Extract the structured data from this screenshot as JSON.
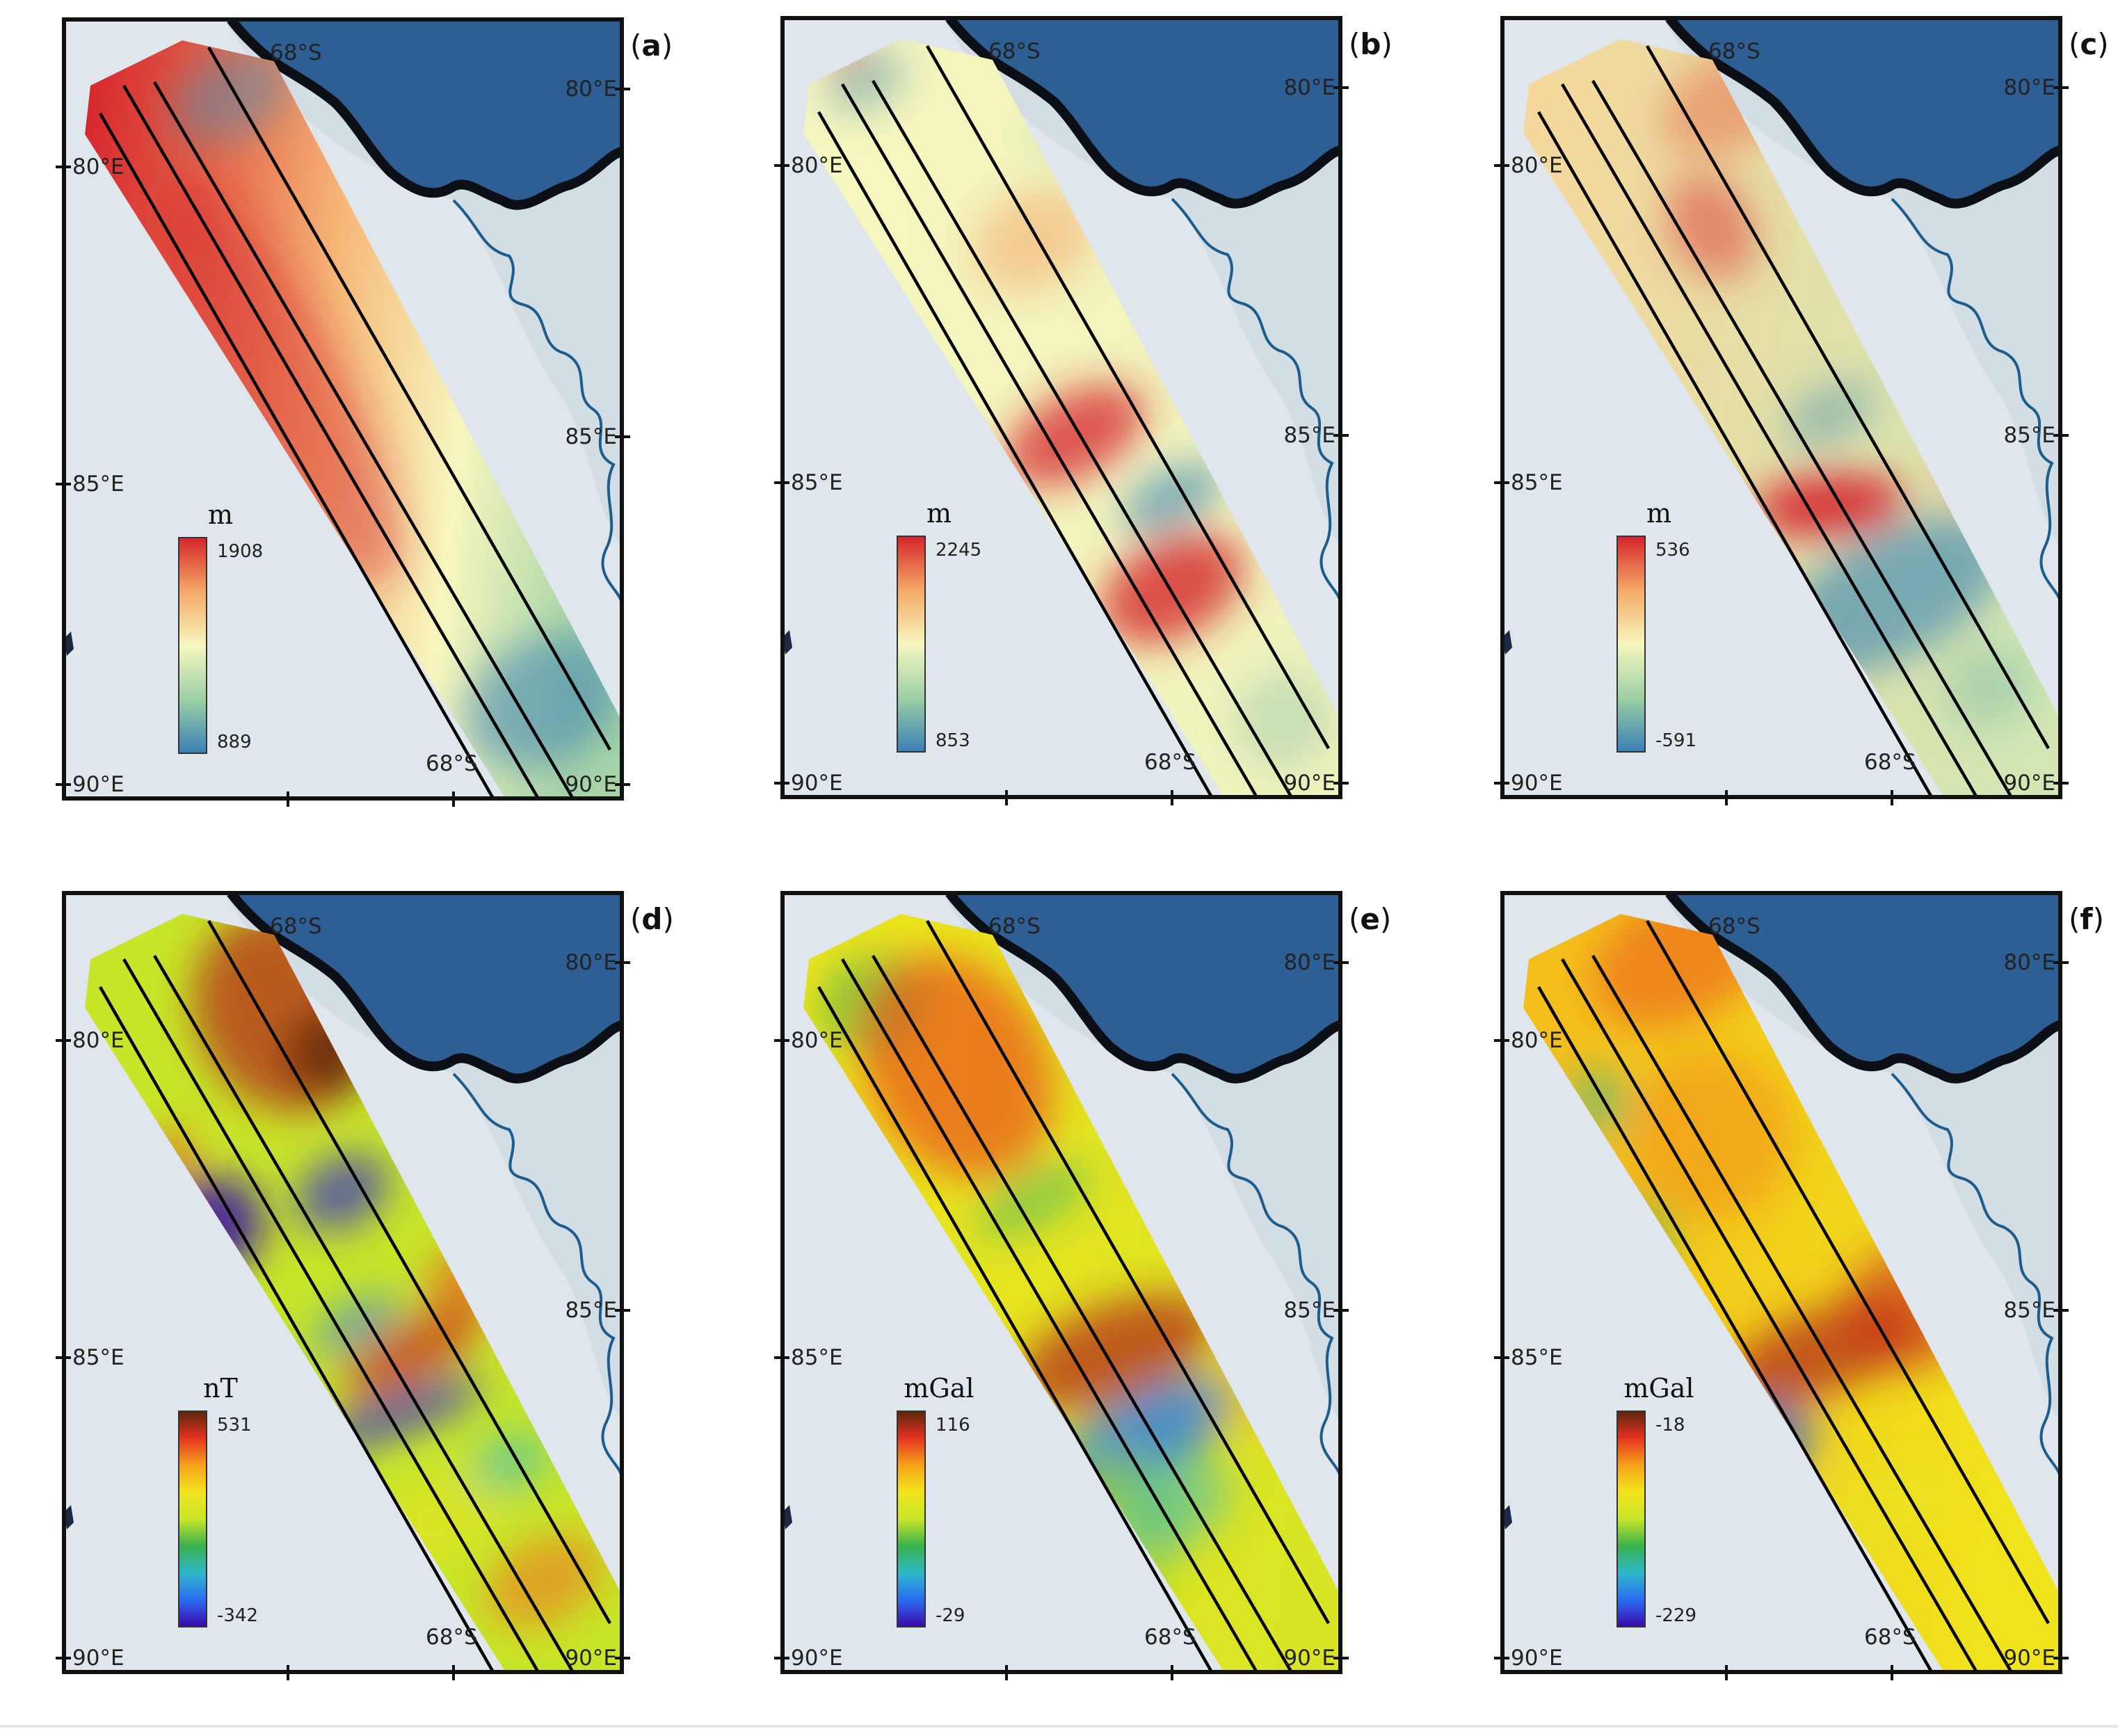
{
  "panels": [
    {
      "letter": "a",
      "unit": "m",
      "cb_max": "1908",
      "cb_min": "889",
      "scheme": "smooth",
      "field": "a"
    },
    {
      "letter": "b",
      "unit": "m",
      "cb_max": "2245",
      "cb_min": "853",
      "scheme": "smooth",
      "field": "b"
    },
    {
      "letter": "c",
      "unit": "m",
      "cb_max": "536",
      "cb_min": "-591",
      "scheme": "smooth",
      "field": "c"
    },
    {
      "letter": "d",
      "unit": "nT",
      "cb_max": "531",
      "cb_min": "-342",
      "scheme": "rainbow",
      "field": "d"
    },
    {
      "letter": "e",
      "unit": "mGal",
      "cb_max": "116",
      "cb_min": "-29",
      "scheme": "rainbow",
      "field": "e"
    },
    {
      "letter": "f",
      "unit": "mGal",
      "cb_max": "-18",
      "cb_min": "-229",
      "scheme": "rainbow",
      "field": "f"
    }
  ],
  "coordinate_labels": {
    "left_top": "80°E",
    "left_mid": "85°E",
    "left_bottom": "90°E",
    "right_top": "80°E",
    "right_mid": "85°E",
    "right_bottom": "90°E",
    "lat_top": "68°S",
    "lat_bottom": "68°S"
  },
  "colors": {
    "ocean": "#2e5f94",
    "ice_shelf": "#e4ebf0",
    "grounded_ice": "#d3dde4",
    "coastline": "#0c0f16",
    "grounding_line": "#1c5d8e",
    "smooth_scale": [
      "#3b7fb5",
      "#9dd0a4",
      "#f7f6bf",
      "#f6a866",
      "#d5242c"
    ],
    "rainbow_scale": [
      "#3a08a8",
      "#2a6cf2",
      "#2fb8c9",
      "#39b04e",
      "#c8e629",
      "#f2e41c",
      "#f6a21a",
      "#e4331f",
      "#5b250c"
    ]
  }
}
